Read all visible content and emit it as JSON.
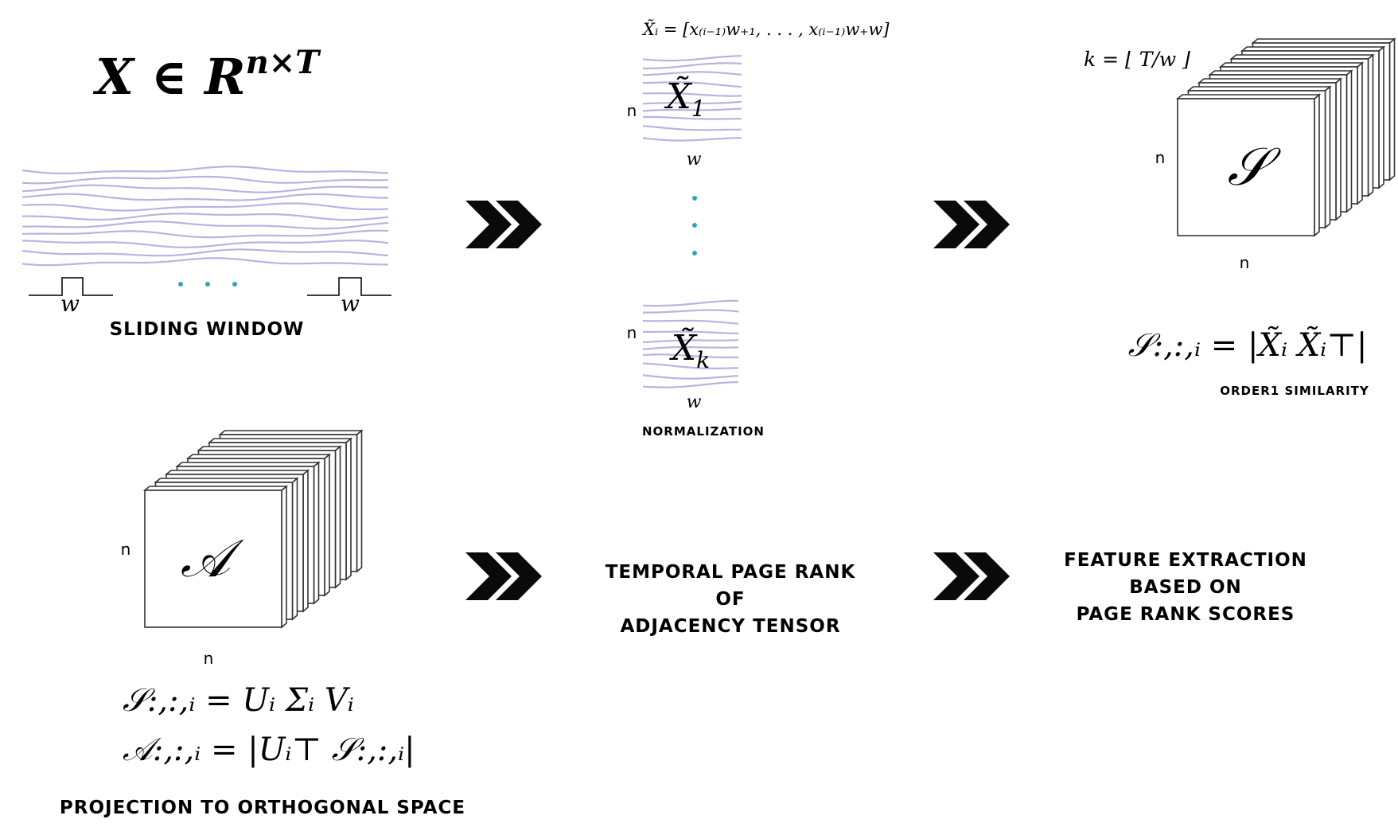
{
  "title_formula": {
    "base": "X ∈ R",
    "sup": "n×T"
  },
  "sliding_window": {
    "window_label": "w",
    "ellipsis": "· · ·",
    "caption": "SLIDING WINDOW"
  },
  "normalization": {
    "window_formula": "X̃ᵢ = [x₍ᵢ₋₁₎w₊₁, . . . , x₍ᵢ₋₁₎w₊w]",
    "first_block": {
      "symbol": "X̃",
      "sub": "1",
      "row_label": "n",
      "col_label": "w"
    },
    "last_block": {
      "symbol": "X̃",
      "sub": "k",
      "row_label": "n",
      "col_label": "w"
    },
    "caption": "NORMALIZATION"
  },
  "similarity": {
    "k_formula": "k = ⌊ T/w ⌋",
    "symbol": "𝒮",
    "row_label": "n",
    "col_label": "n",
    "formula": "𝒮:,:,ᵢ = |X̃ᵢ X̃ᵢ⊤|",
    "caption": "ORDER1 SIMILARITY"
  },
  "adjacency": {
    "symbol": "𝒜",
    "row_label": "n",
    "col_label": "n",
    "formula_1": "𝒮:,:,ᵢ = Uᵢ Σᵢ Vᵢ",
    "formula_2": "𝒜:,:,ᵢ = |Uᵢ⊤ 𝒮:,:,ᵢ|",
    "caption": "PROJECTION TO ORTHOGONAL SPACE"
  },
  "page_rank": {
    "lines": [
      "TEMPORAL PAGE RANK",
      "OF",
      "ADJACENCY TENSOR"
    ]
  },
  "features": {
    "lines": [
      "FEATURE EXTRACTION",
      "BASED ON",
      "PAGE RANK SCORES"
    ]
  },
  "arrow_glyph": "»",
  "colors": {
    "wave": "#b9b3e2",
    "dots": "#2fa6b8",
    "ink": "#111111"
  }
}
